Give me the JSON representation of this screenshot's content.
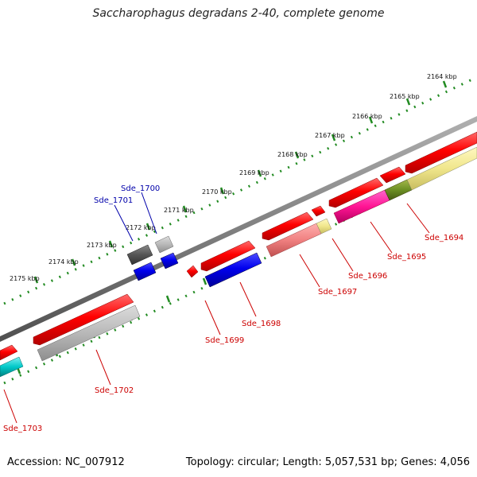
{
  "title": "Saccharophagus degradans 2-40, complete genome",
  "accession": "Accession: NC_007912",
  "topology": "Topology: circular; Length: 5,057,531 bp; Genes: 4,056",
  "colors": {
    "backbone": "#808080",
    "scale": "#228B22",
    "label_red": "#cc0000",
    "label_blue": "#0000aa"
  },
  "kbp_ticks": [
    "2164 kbp",
    "2165 kbp",
    "2166 kbp",
    "2167 kbp",
    "2168 kbp",
    "2169 kbp",
    "2170 kbp",
    "2171 kbp",
    "2172 kbp",
    "2173 kbp",
    "2174 kbp",
    "2175 kbp"
  ],
  "gene_labels": [
    "Sde_1694",
    "Sde_1695",
    "Sde_1696",
    "Sde_1697",
    "Sde_1698",
    "Sde_1699",
    "Sde_1700",
    "Sde_1701",
    "Sde_1702",
    "Sde_1703"
  ]
}
